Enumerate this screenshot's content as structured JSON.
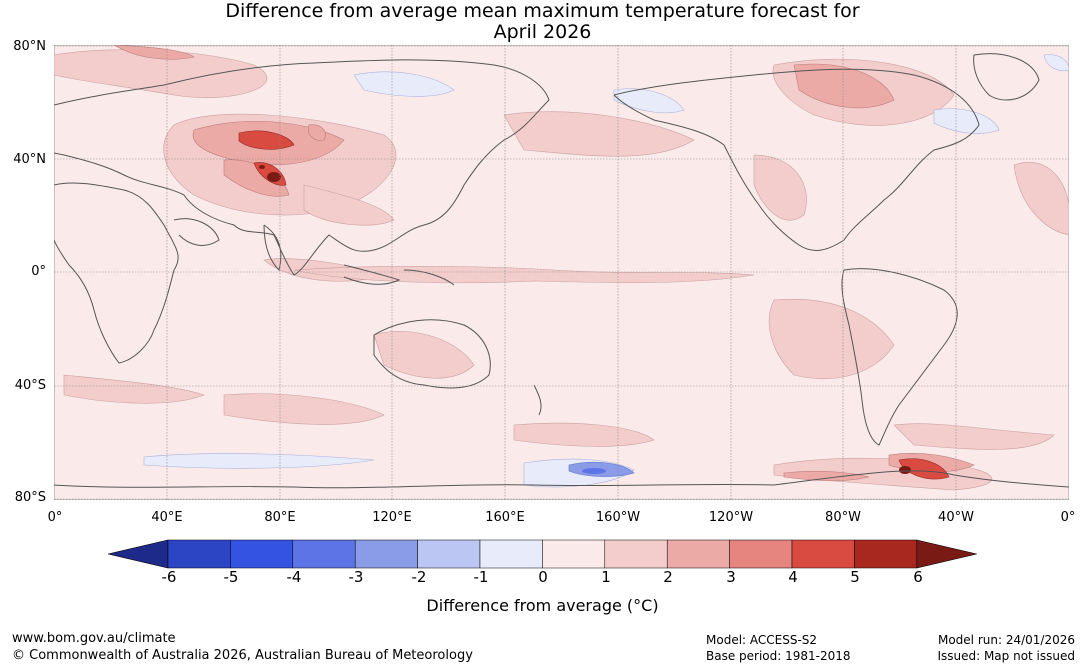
{
  "title": {
    "line1": "Difference from average mean maximum temperature forecast for",
    "line2": "April 2026"
  },
  "axes": {
    "lat_labels": [
      "80°N",
      "40°N",
      "0°",
      "40°S",
      "80°S"
    ],
    "lon_labels": [
      "0°",
      "40°E",
      "80°E",
      "120°E",
      "160°E",
      "160°W",
      "120°W",
      "80°W",
      "40°W",
      "0°"
    ]
  },
  "colorbar": {
    "ticks": [
      "-6",
      "-5",
      "-4",
      "-3",
      "-2",
      "-1",
      "0",
      "1",
      "2",
      "3",
      "4",
      "5",
      "6"
    ],
    "colors": [
      "#1e2a8a",
      "#2b45c4",
      "#3553e3",
      "#5c74e6",
      "#8a9be8",
      "#bcc6f2",
      "#e8ecfa",
      "#fbeaea",
      "#f3cccc",
      "#ecaaa6",
      "#e68480",
      "#d94a40",
      "#a8281f",
      "#7a1a14"
    ],
    "label": "Difference from average (°C)"
  },
  "footer": {
    "website": "www.bom.gov.au/climate",
    "copyright": "© Commonwealth of Australia 2026, Australian Bureau of Meteorology",
    "model": "Model: ACCESS-S2",
    "base_period": "Base period: 1981-2018",
    "model_run": "Model run: 24/01/2026",
    "issued": "Issued: Map not issued"
  }
}
